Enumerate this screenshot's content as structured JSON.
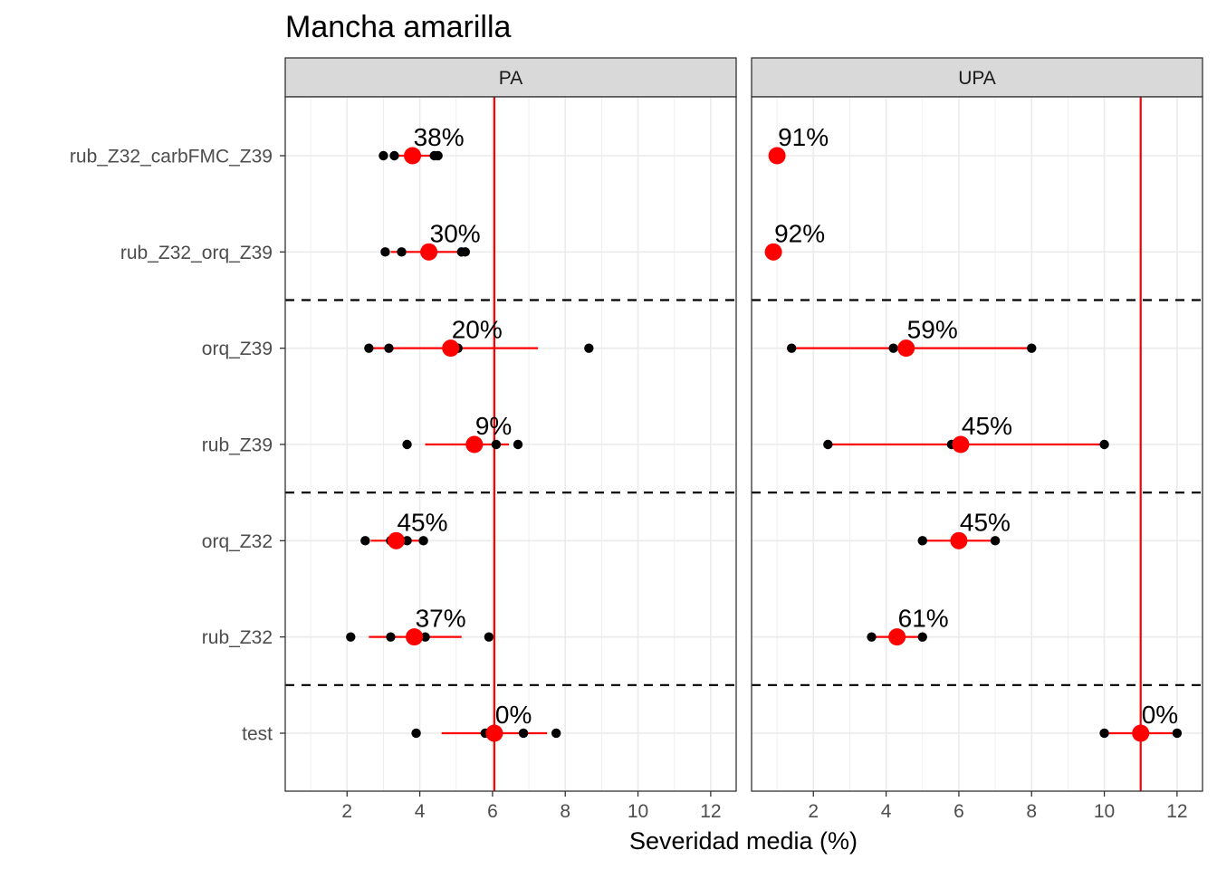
{
  "chart_data": {
    "type": "scatter",
    "title": "Mancha amarilla",
    "xlabel": "Severidad media (%)",
    "ylabel": "",
    "xlim": [
      0.3,
      12.7
    ],
    "x_ticks": [
      2,
      4,
      6,
      8,
      10,
      12
    ],
    "categories": [
      "rub_Z32_carbFMC_Z39",
      "rub_Z32_orq_Z39",
      "orq_Z39",
      "rub_Z39",
      "orq_Z32",
      "rub_Z32",
      "test"
    ],
    "group_separators_after": [
      "rub_Z32_orq_Z39",
      "rub_Z39",
      "rub_Z32"
    ],
    "colors": {
      "mean": "#ff0000",
      "points": "#000000",
      "reference_line": "#ff0000",
      "strip_bg": "#d9d9d9",
      "grid": "#ebebeb"
    },
    "panels": [
      {
        "name": "PA",
        "reference_x": 6.05,
        "rows": [
          {
            "category": "rub_Z32_carbFMC_Z39",
            "mean": 3.8,
            "ci": [
              3.3,
              4.4
            ],
            "points": [
              3.0,
              3.3,
              4.4,
              4.5
            ],
            "label": "38%"
          },
          {
            "category": "rub_Z32_orq_Z39",
            "mean": 4.25,
            "ci": [
              3.2,
              5.3
            ],
            "points": [
              3.05,
              3.5,
              5.15,
              5.25
            ],
            "label": "30%"
          },
          {
            "category": "orq_Z39",
            "mean": 4.85,
            "ci": [
              2.6,
              7.25
            ],
            "points": [
              2.6,
              3.15,
              5.05,
              8.65
            ],
            "label": "20%"
          },
          {
            "category": "rub_Z39",
            "mean": 5.5,
            "ci": [
              4.15,
              6.45
            ],
            "points": [
              3.65,
              6.1,
              6.7
            ],
            "label": "9%"
          },
          {
            "category": "orq_Z32",
            "mean": 3.35,
            "ci": [
              2.65,
              4.05
            ],
            "points": [
              2.5,
              3.2,
              3.65,
              4.1
            ],
            "label": "45%"
          },
          {
            "category": "rub_Z32",
            "mean": 3.85,
            "ci": [
              2.6,
              5.15
            ],
            "points": [
              2.1,
              3.2,
              4.15,
              5.9
            ],
            "label": "37%"
          },
          {
            "category": "test",
            "mean": 6.05,
            "ci": [
              4.6,
              7.5
            ],
            "points": [
              3.9,
              5.8,
              6.85,
              7.75
            ],
            "label": "0%"
          }
        ]
      },
      {
        "name": "UPA",
        "reference_x": 11.0,
        "rows": [
          {
            "category": "rub_Z32_carbFMC_Z39",
            "mean": 1.0,
            "ci": [
              1.0,
              1.0
            ],
            "points": [
              1.0
            ],
            "label": "91%"
          },
          {
            "category": "rub_Z32_orq_Z39",
            "mean": 0.9,
            "ci": [
              0.8,
              1.0
            ],
            "points": [
              0.8,
              0.9
            ],
            "label": "92%"
          },
          {
            "category": "orq_Z39",
            "mean": 4.55,
            "ci": [
              1.4,
              8.0
            ],
            "points": [
              1.4,
              4.2,
              8.0
            ],
            "label": "59%"
          },
          {
            "category": "rub_Z39",
            "mean": 6.05,
            "ci": [
              2.4,
              10.0
            ],
            "points": [
              2.4,
              5.8,
              10.0
            ],
            "label": "45%"
          },
          {
            "category": "orq_Z32",
            "mean": 6.0,
            "ci": [
              5.0,
              7.0
            ],
            "points": [
              5.0,
              7.0
            ],
            "label": "45%"
          },
          {
            "category": "rub_Z32",
            "mean": 4.3,
            "ci": [
              3.6,
              5.0
            ],
            "points": [
              3.6,
              5.0
            ],
            "label": "61%"
          },
          {
            "category": "test",
            "mean": 11.0,
            "ci": [
              10.0,
              12.0
            ],
            "points": [
              10.0,
              12.0
            ],
            "label": "0%"
          }
        ]
      }
    ]
  }
}
